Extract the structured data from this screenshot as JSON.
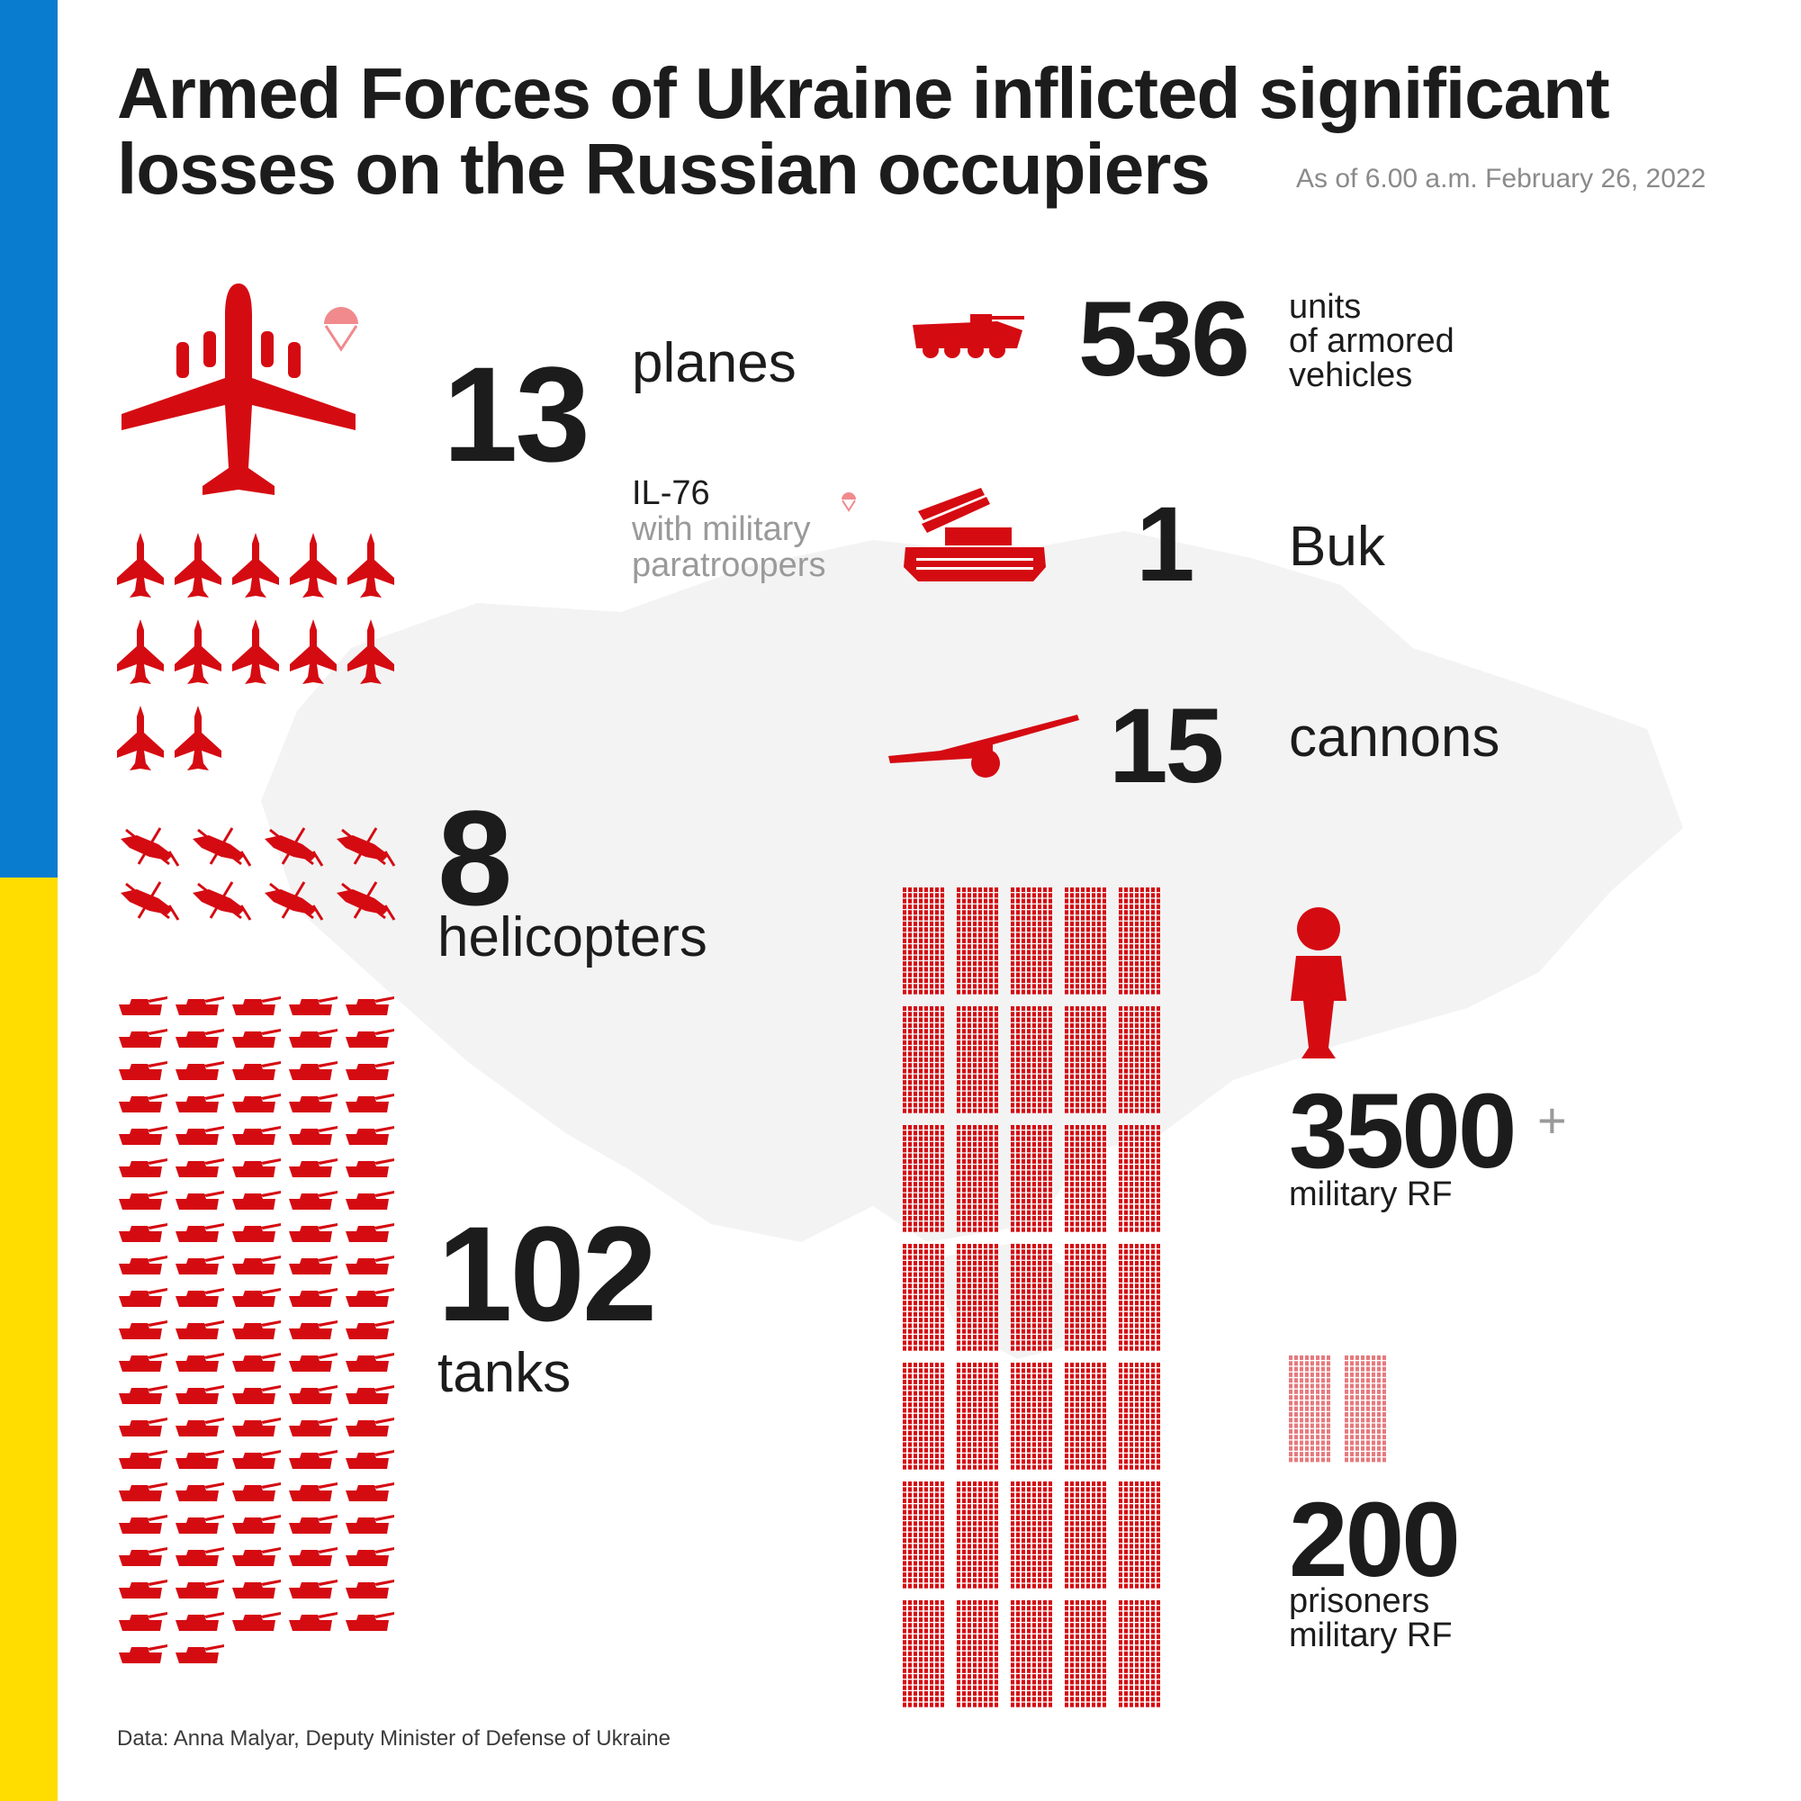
{
  "title": "Armed Forces of Ukraine inflicted significant losses on the Russian occupiers",
  "date": "As of 6.00 a.m. February 26, 2022",
  "colors": {
    "accent": "#d50b12",
    "blue": "#0a7ccf",
    "yellow": "#ffdd00",
    "map": "#f3f3f3"
  },
  "source": "Data: Anna Malyar, Deputy Minister of Defense of Ukraine",
  "chart_data": {
    "type": "pictogram",
    "title": "Armed Forces of Ukraine inflicted significant losses on the Russian occupiers",
    "series": [
      {
        "name": "planes",
        "value": 13,
        "icon": "plane-icon"
      },
      {
        "name": "units of armored vehicles",
        "value": 536,
        "icon": "armored-vehicle-icon"
      },
      {
        "name": "Buk",
        "value": 1,
        "icon": "buk-icon"
      },
      {
        "name": "cannons",
        "value": 15,
        "icon": "cannon-icon"
      },
      {
        "name": "helicopters",
        "value": 8,
        "icon": "helicopter-icon"
      },
      {
        "name": "tanks",
        "value": 102,
        "icon": "tank-icon"
      },
      {
        "name": "military RF",
        "value": 3500,
        "icon": "soldier-icon"
      },
      {
        "name": "prisoners military RF",
        "value": 200,
        "icon": "soldier-icon"
      }
    ]
  },
  "stats": {
    "planes": {
      "value": "13",
      "label": "planes",
      "note_line1": "IL-76",
      "note_line2": "with military",
      "note_line3": "paratroopers"
    },
    "armored": {
      "value": "536",
      "label1": "units",
      "label2": "of armored",
      "label3": "vehicles"
    },
    "buk": {
      "value": "1",
      "label": "Buk"
    },
    "cannons": {
      "value": "15",
      "label": "cannons"
    },
    "helicopters": {
      "value": "8",
      "label": "helicopters"
    },
    "tanks": {
      "value": "102",
      "label": "tanks"
    },
    "military": {
      "value": "3500",
      "plus": "+",
      "label": "military RF"
    },
    "prisoners": {
      "value": "200",
      "label1": "prisoners",
      "label2": "military RF"
    }
  }
}
